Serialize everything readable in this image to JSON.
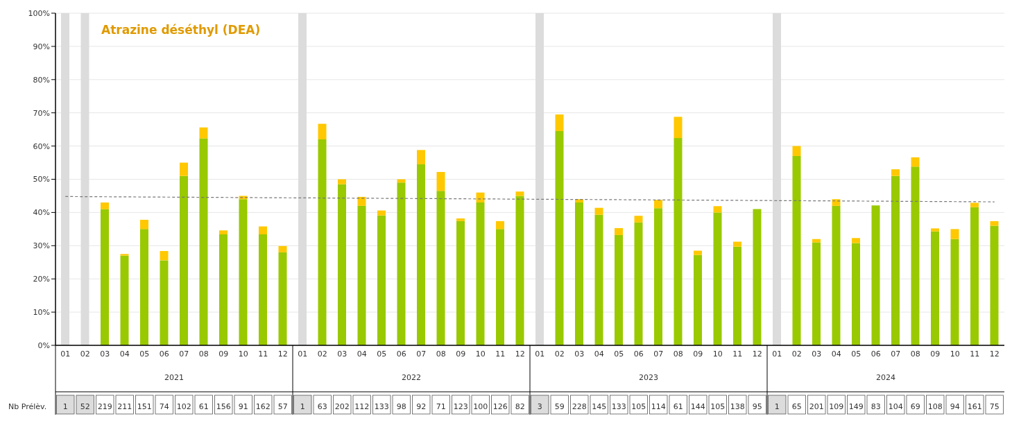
{
  "chart_data": {
    "type": "bar",
    "title": "Atrazine déséthyl (DEA)",
    "stacked": true,
    "grid": "y",
    "ylim": [
      0,
      100
    ],
    "yticks": [
      {
        "value": 0,
        "label": "0%"
      },
      {
        "value": 10,
        "label": "10%"
      },
      {
        "value": 20,
        "label": "20%"
      },
      {
        "value": 30,
        "label": "30%"
      },
      {
        "value": 40,
        "label": "40%"
      },
      {
        "value": 50,
        "label": "50%"
      },
      {
        "value": 60,
        "label": "60%"
      },
      {
        "value": 70,
        "label": "70%"
      },
      {
        "value": 80,
        "label": "80%"
      },
      {
        "value": 90,
        "label": "90%"
      },
      {
        "value": 100,
        "label": "100%"
      }
    ],
    "categories": [
      "01",
      "02",
      "03",
      "04",
      "05",
      "06",
      "07",
      "08",
      "09",
      "10",
      "11",
      "12",
      "01",
      "02",
      "03",
      "04",
      "05",
      "06",
      "07",
      "08",
      "09",
      "10",
      "11",
      "12",
      "01",
      "02",
      "03",
      "04",
      "05",
      "06",
      "07",
      "08",
      "09",
      "10",
      "11",
      "12",
      "01",
      "02",
      "03",
      "04",
      "05",
      "06",
      "07",
      "08",
      "09",
      "10",
      "11",
      "12"
    ],
    "series": [
      {
        "color": "#dcdcdc",
        "values": [
          100,
          100,
          null,
          null,
          null,
          null,
          null,
          null,
          null,
          null,
          null,
          null,
          100,
          null,
          null,
          null,
          null,
          null,
          null,
          null,
          null,
          null,
          null,
          null,
          100,
          null,
          null,
          null,
          null,
          null,
          null,
          null,
          null,
          null,
          null,
          null,
          100,
          null,
          null,
          null,
          null,
          null,
          null,
          null,
          null,
          null,
          null,
          null
        ]
      },
      {
        "color": "#99c900",
        "values": [
          null,
          null,
          41,
          27,
          35,
          25.6,
          51,
          62.3,
          33.4,
          44,
          33.4,
          28,
          null,
          62,
          48.5,
          42,
          39.1,
          49,
          54.5,
          46.5,
          37.4,
          43,
          35,
          45,
          null,
          64.5,
          43,
          39.3,
          33.2,
          37,
          41.3,
          62.4,
          27.2,
          40,
          29.7,
          41,
          null,
          57,
          31,
          42,
          30.8,
          42.1,
          51,
          53.8,
          34.3,
          32,
          41.6,
          36
        ]
      },
      {
        "color": "#ffc800",
        "values": [
          null,
          null,
          2,
          0.5,
          2.8,
          2.8,
          4,
          3.3,
          1.2,
          1,
          2.4,
          1.9,
          null,
          4.7,
          1.5,
          2.7,
          1.5,
          1,
          4.3,
          5.7,
          0.8,
          3,
          2.4,
          1.3,
          null,
          5,
          1,
          2.1,
          2.1,
          2,
          2.5,
          6.4,
          1.3,
          1.9,
          1.5,
          null,
          null,
          3,
          1,
          2,
          1.5,
          null,
          2,
          2.8,
          0.9,
          3,
          1.3,
          1.4
        ]
      },
      {
        "type": "line",
        "color": "#777777",
        "line_style": "dashed",
        "marker": "none",
        "values": [
          44.8,
          null,
          null,
          null,
          null,
          null,
          null,
          null,
          null,
          null,
          null,
          null,
          null,
          null,
          null,
          null,
          null,
          null,
          null,
          null,
          null,
          null,
          null,
          null,
          null,
          null,
          null,
          null,
          null,
          null,
          null,
          null,
          null,
          null,
          null,
          null,
          null,
          null,
          null,
          null,
          null,
          null,
          null,
          null,
          null,
          null,
          null,
          43.2
        ]
      }
    ],
    "annotations": [
      "2021",
      "2022",
      "2023",
      "2024",
      "Nb Prélèv.",
      "1",
      "52",
      "219",
      "211",
      "151",
      "74",
      "102",
      "61",
      "156",
      "91",
      "162",
      "57",
      "1",
      "63",
      "202",
      "112",
      "133",
      "98",
      "92",
      "71",
      "123",
      "100",
      "126",
      "82",
      "3",
      "59",
      "228",
      "145",
      "133",
      "105",
      "114",
      "61",
      "144",
      "105",
      "138",
      "95",
      "1",
      "65",
      "201",
      "109",
      "149",
      "83",
      "104",
      "69",
      "108",
      "94",
      "161",
      "75"
    ]
  }
}
